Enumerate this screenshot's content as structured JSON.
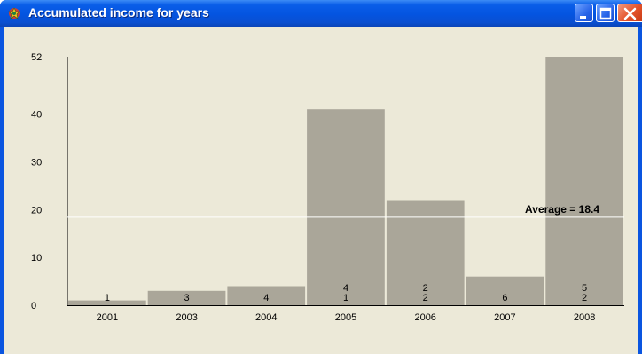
{
  "window": {
    "title": "Accumulated income for years",
    "app_icon": "chart-app-icon",
    "controls": [
      "minimize-icon",
      "maximize-icon",
      "close-icon"
    ]
  },
  "chart_data": {
    "type": "bar",
    "categories": [
      "2001",
      "2003",
      "2004",
      "2005",
      "2006",
      "2007",
      "2008"
    ],
    "values": [
      1,
      3,
      4,
      41,
      22,
      6,
      52
    ],
    "bar_labels": [
      [
        "1"
      ],
      [
        "3"
      ],
      [
        "4"
      ],
      [
        "4",
        "1"
      ],
      [
        "2",
        "2"
      ],
      [
        "6"
      ],
      [
        "5",
        "2"
      ]
    ],
    "yticks": [
      "0",
      "10",
      "20",
      "30",
      "40",
      "52"
    ],
    "ytick_values": [
      0,
      10,
      20,
      30,
      40,
      52
    ],
    "ylim": [
      0,
      52
    ],
    "average": {
      "value": 18.4,
      "label": "Average = 18.4"
    },
    "grid": false,
    "colors": {
      "bar": "#aaa699",
      "background": "#ece9d8",
      "average_line": "#ffffff"
    }
  }
}
